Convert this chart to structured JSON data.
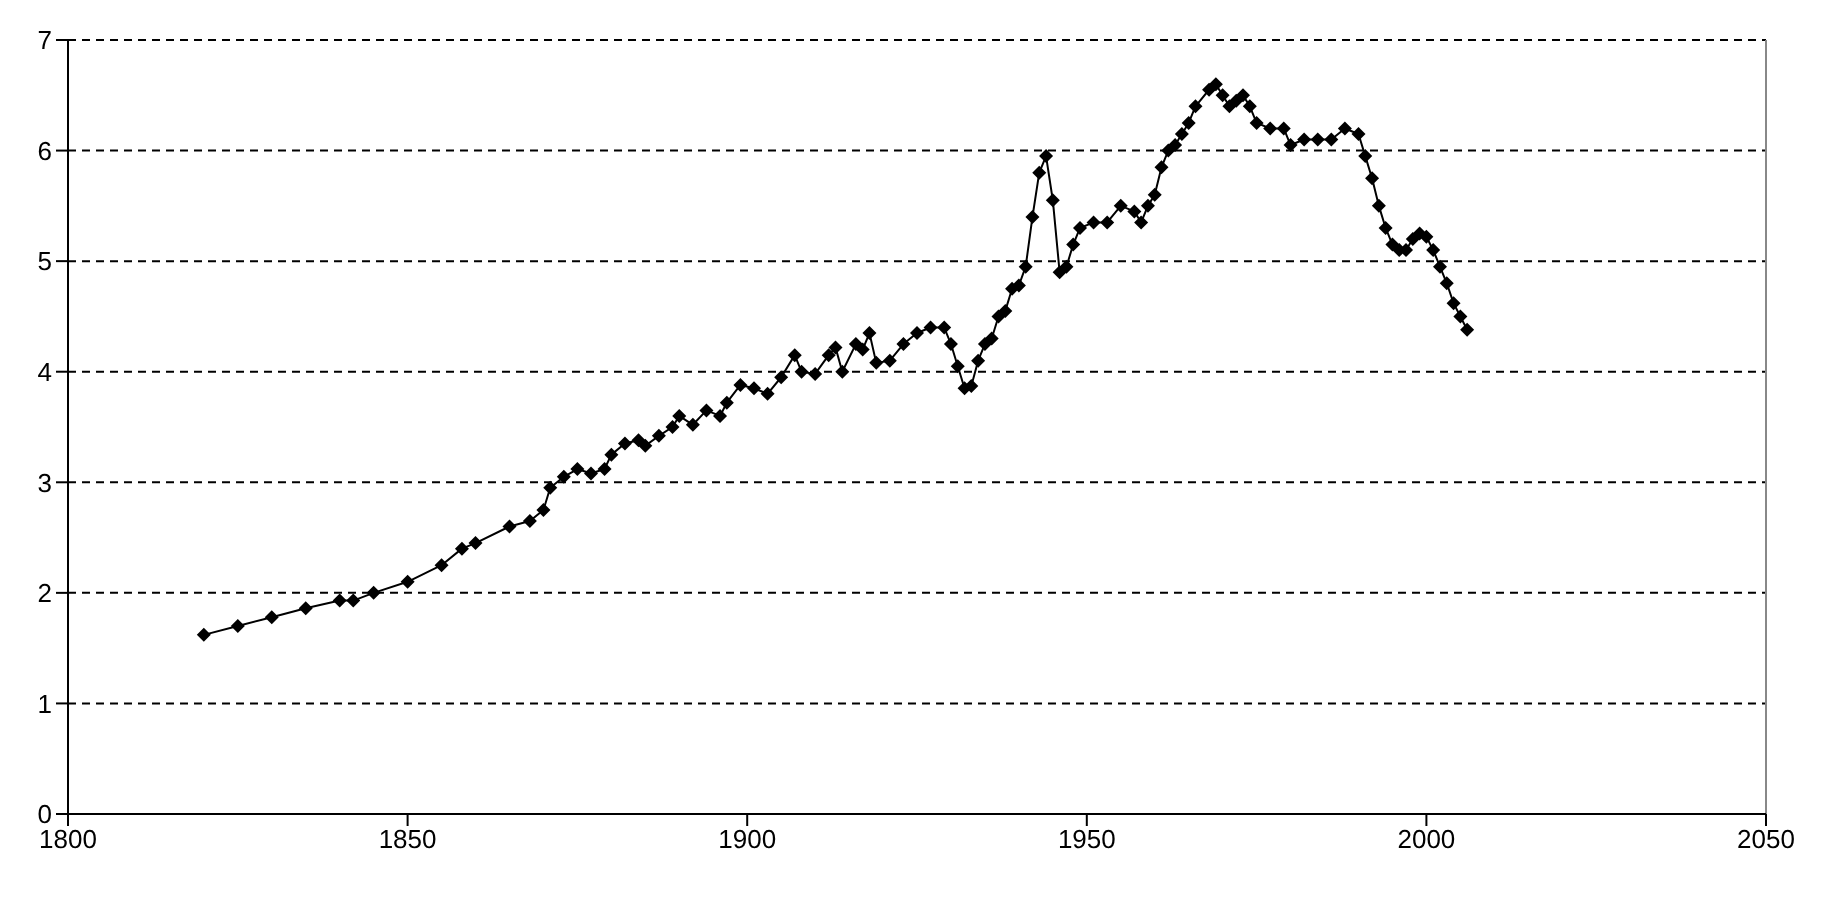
{
  "chart_data": {
    "type": "line",
    "x": [
      1820,
      1825,
      1830,
      1835,
      1840,
      1842,
      1845,
      1850,
      1855,
      1858,
      1860,
      1865,
      1868,
      1870,
      1871,
      1873,
      1875,
      1877,
      1879,
      1880,
      1882,
      1884,
      1885,
      1887,
      1889,
      1890,
      1892,
      1894,
      1896,
      1897,
      1899,
      1901,
      1903,
      1905,
      1907,
      1908,
      1910,
      1912,
      1913,
      1914,
      1916,
      1917,
      1918,
      1919,
      1921,
      1923,
      1925,
      1927,
      1929,
      1930,
      1931,
      1932,
      1933,
      1934,
      1935,
      1936,
      1937,
      1938,
      1939,
      1940,
      1941,
      1942,
      1943,
      1944,
      1945,
      1946,
      1947,
      1948,
      1949,
      1951,
      1953,
      1955,
      1957,
      1958,
      1959,
      1960,
      1961,
      1962,
      1963,
      1964,
      1965,
      1966,
      1968,
      1969,
      1970,
      1971,
      1972,
      1973,
      1974,
      1975,
      1977,
      1979,
      1980,
      1982,
      1984,
      1986,
      1988,
      1990,
      1991,
      1992,
      1993,
      1994,
      1995,
      1996,
      1997,
      1998,
      1999,
      2000,
      2001,
      2002,
      2003,
      2004,
      2005,
      2006
    ],
    "series": [
      {
        "color": "#000000",
        "values": [
          1.62,
          1.7,
          1.78,
          1.86,
          1.93,
          1.93,
          2.0,
          2.1,
          2.25,
          2.4,
          2.45,
          2.6,
          2.65,
          2.75,
          2.95,
          3.05,
          3.12,
          3.08,
          3.12,
          3.25,
          3.35,
          3.38,
          3.33,
          3.42,
          3.5,
          3.6,
          3.52,
          3.65,
          3.6,
          3.72,
          3.88,
          3.85,
          3.8,
          3.95,
          4.15,
          4.0,
          3.98,
          4.15,
          4.22,
          4.0,
          4.25,
          4.2,
          4.35,
          4.08,
          4.1,
          4.25,
          4.35,
          4.4,
          4.4,
          4.25,
          4.05,
          3.85,
          3.87,
          4.1,
          4.25,
          4.3,
          4.5,
          4.55,
          4.75,
          4.78,
          4.95,
          5.4,
          5.8,
          5.95,
          5.55,
          4.9,
          4.95,
          5.15,
          5.3,
          5.35,
          5.35,
          5.5,
          5.45,
          5.35,
          5.5,
          5.6,
          5.85,
          6.0,
          6.05,
          6.15,
          6.25,
          6.4,
          6.55,
          6.6,
          6.5,
          6.4,
          6.45,
          6.5,
          6.4,
          6.25,
          6.2,
          6.2,
          6.05,
          6.1,
          6.1,
          6.1,
          6.2,
          6.15,
          5.95,
          5.75,
          5.5,
          5.3,
          5.15,
          5.1,
          5.1,
          5.2,
          5.25,
          5.22,
          5.1,
          4.95,
          4.8,
          4.62,
          4.5,
          4.38
        ]
      }
    ],
    "xlim": [
      1800,
      2050
    ],
    "xticks": [
      1800,
      1850,
      1900,
      1950,
      2000,
      2050
    ],
    "ylim": [
      0,
      7
    ],
    "yticks": [
      0,
      1,
      2,
      3,
      4,
      5,
      6,
      7
    ],
    "grid": "y",
    "marker": "diamond",
    "line_style": "solid"
  }
}
